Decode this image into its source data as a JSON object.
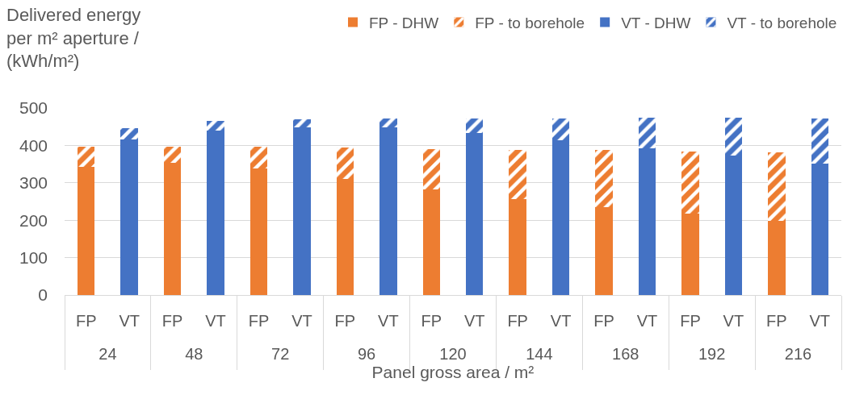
{
  "chart_data": {
    "type": "bar",
    "stacked": true,
    "ylabel": "Delivered energy\nper m² aperture /\n(kWh/m²)",
    "xlabel": "Panel gross area / m²",
    "categories": [
      [
        "24",
        "FP"
      ],
      [
        null,
        "VT"
      ],
      [
        "48",
        "FP"
      ],
      [
        null,
        "VT"
      ],
      [
        "72",
        "FP"
      ],
      [
        null,
        "VT"
      ],
      [
        "96",
        "FP"
      ],
      [
        null,
        "VT"
      ],
      [
        "120",
        "FP"
      ],
      [
        null,
        "VT"
      ],
      [
        "144",
        "FP"
      ],
      [
        null,
        "VT"
      ],
      [
        "168",
        "FP"
      ],
      [
        null,
        "VT"
      ],
      [
        "192",
        "FP"
      ],
      [
        null,
        "VT"
      ],
      [
        "216",
        "FP"
      ],
      [
        null,
        "VT"
      ]
    ],
    "series": [
      {
        "name": "FP - DHW",
        "color": "#ed7d31",
        "values": [
          343,
          null,
          353,
          null,
          338,
          null,
          311,
          null,
          282,
          null,
          257,
          null,
          235,
          null,
          217,
          null,
          199,
          null
        ]
      },
      {
        "name": "FP - to borehole",
        "color": "#ed7d31",
        "values": [
          54,
          null,
          44,
          null,
          58,
          null,
          84,
          null,
          109,
          null,
          132,
          null,
          152,
          null,
          166,
          null,
          182,
          null
        ]
      },
      {
        "name": "VT - DHW",
        "color": "#4472c4",
        "values": [
          null,
          416,
          null,
          440,
          null,
          448,
          null,
          448,
          null,
          434,
          null,
          414,
          null,
          392,
          null,
          373,
          null,
          351
        ]
      },
      {
        "name": "VT - to borehole",
        "color": "#4472c4",
        "values": [
          null,
          30,
          null,
          25,
          null,
          21,
          null,
          25,
          null,
          39,
          null,
          58,
          null,
          82,
          null,
          101,
          null,
          122
        ]
      }
    ],
    "ylim": [
      0,
      500
    ],
    "yticks": [
      0,
      100,
      200,
      300,
      400,
      500
    ],
    "grid": "y",
    "legend": "top right"
  }
}
